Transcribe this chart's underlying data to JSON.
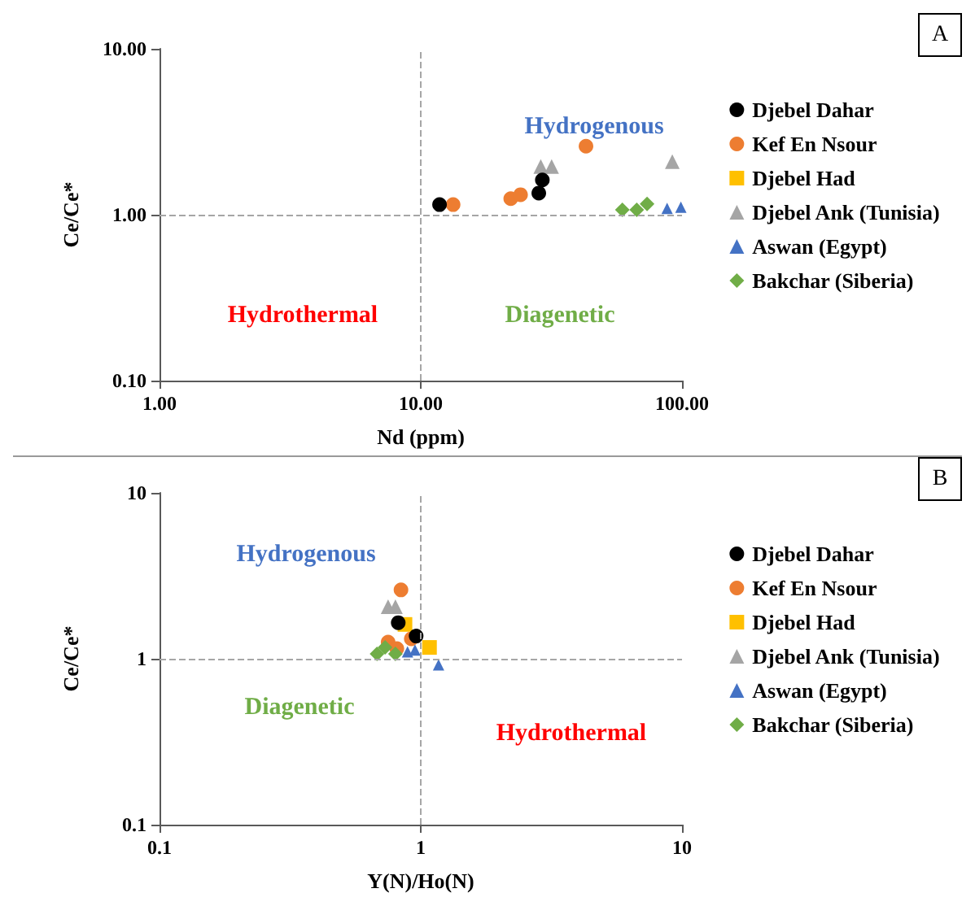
{
  "chart_data": [
    {
      "type": "scatter",
      "xlabel": "Nd (ppm)",
      "ylabel": "Ce/Ce*",
      "log": "xy",
      "grid": false,
      "legend": "right",
      "xlim": [
        1,
        100
      ],
      "xticks": [
        {
          "value": 1,
          "label": "1.00"
        },
        {
          "value": 10,
          "label": "10.00"
        },
        {
          "value": 100,
          "label": "100.00"
        }
      ],
      "ylim": [
        0.1,
        10
      ],
      "yticks": [
        {
          "value": 0.1,
          "label": "0.10"
        },
        {
          "value": 1,
          "label": "1.00"
        },
        {
          "value": 10,
          "label": "10.00"
        }
      ],
      "ref_lines": [
        {
          "axis": "x",
          "value": 10,
          "color": "#a6a6a6",
          "line_style": "dashed"
        },
        {
          "axis": "y",
          "value": 1,
          "color": "#a6a6a6",
          "line_style": "dashed"
        }
      ],
      "annotations": [
        "Hydrogenous",
        "Hydrothermal",
        "Diagenetic",
        "A"
      ],
      "series": [
        {
          "name": "Djebel Dahar",
          "color": "#000000",
          "marker": "circle",
          "x": [
            11.8,
            28.3,
            29.2
          ],
          "values": [
            1.15,
            1.35,
            1.62
          ]
        },
        {
          "name": "Kef En Nsour",
          "color": "#ed7d31",
          "marker": "circle",
          "x": [
            13.3,
            22.1,
            24.1,
            42.9
          ],
          "values": [
            1.15,
            1.25,
            1.32,
            2.59
          ]
        },
        {
          "name": "Djebel Had",
          "color": "#ffc000",
          "marker": "square"
        },
        {
          "name": "Djebel Ank (Tunisia)",
          "color": "#a5a5a5",
          "marker": "triangle",
          "x": [
            28.8,
            31.7,
            91.8
          ],
          "values": [
            1.95,
            1.95,
            2.09
          ]
        },
        {
          "name": "Aswan (Egypt)",
          "color": "#4472c4",
          "marker": "triangle",
          "x": [
            87.7,
            99
          ],
          "values": [
            1.09,
            1.11
          ]
        },
        {
          "name": "Bakchar (Siberia)",
          "color": "#70ad47",
          "marker": "diamond",
          "x": [
            59.1,
            67.1,
            73.5
          ],
          "values": [
            1.07,
            1.07,
            1.16
          ]
        }
      ]
    },
    {
      "type": "scatter",
      "xlabel": "Y(N)/Ho(N)",
      "ylabel": "Ce/Ce*",
      "log": "xy",
      "grid": false,
      "legend": "right",
      "xlim": [
        0.1,
        10
      ],
      "xticks": [
        0.1,
        1,
        10
      ],
      "ylim": [
        0.1,
        10
      ],
      "yticks": [
        0.1,
        1,
        10
      ],
      "ref_lines": [
        {
          "axis": "x",
          "value": 1,
          "color": "#a6a6a6",
          "line_style": "dashed"
        },
        {
          "axis": "y",
          "value": 1,
          "color": "#a6a6a6",
          "line_style": "dashed"
        }
      ],
      "annotations": [
        "Hydrogenous",
        "Diagenetic",
        "Hydrothermal",
        "B"
      ],
      "series": [
        {
          "name": "Djebel Dahar",
          "color": "#000000",
          "marker": "circle",
          "x": [
            0.82,
            0.96
          ],
          "values": [
            1.65,
            1.37
          ]
        },
        {
          "name": "Kef En Nsour",
          "color": "#ed7d31",
          "marker": "circle",
          "x": [
            0.84,
            0.92,
            0.75,
            0.81
          ],
          "values": [
            2.6,
            1.32,
            1.26,
            1.15
          ]
        },
        {
          "name": "Djebel Had",
          "color": "#ffc000",
          "marker": "square",
          "x": [
            0.87,
            1.08
          ],
          "values": [
            1.61,
            1.17
          ]
        },
        {
          "name": "Djebel Ank (Tunisia)",
          "color": "#a5a5a5",
          "marker": "triangle",
          "x": [
            0.75,
            0.8
          ],
          "values": [
            2.06,
            2.06
          ]
        },
        {
          "name": "Aswan (Egypt)",
          "color": "#4472c4",
          "marker": "triangle",
          "x": [
            0.89,
            0.95,
            1.17
          ],
          "values": [
            1.1,
            1.13,
            0.92
          ]
        },
        {
          "name": "Bakchar (Siberia)",
          "color": "#70ad47",
          "marker": "diamond",
          "x": [
            0.68,
            0.73,
            0.8
          ],
          "values": [
            1.07,
            1.17,
            1.07
          ]
        }
      ]
    }
  ]
}
